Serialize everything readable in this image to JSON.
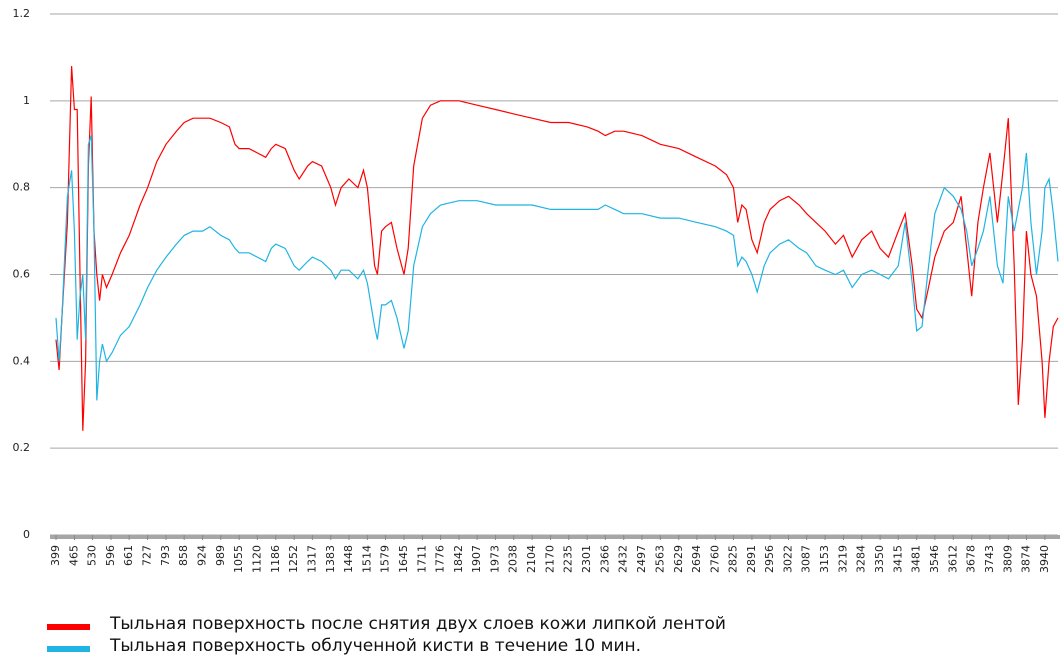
{
  "chart_data": {
    "type": "line",
    "x": [
      399,
      410,
      420,
      440,
      455,
      465,
      475,
      485,
      495,
      505,
      515,
      525,
      535,
      545,
      555,
      565,
      580,
      600,
      630,
      661,
      700,
      727,
      760,
      793,
      830,
      858,
      890,
      924,
      950,
      989,
      1020,
      1040,
      1055,
      1090,
      1120,
      1150,
      1170,
      1186,
      1220,
      1252,
      1270,
      1300,
      1317,
      1350,
      1383,
      1400,
      1420,
      1448,
      1480,
      1500,
      1514,
      1540,
      1550,
      1565,
      1579,
      1600,
      1620,
      1645,
      1660,
      1680,
      1711,
      1740,
      1776,
      1842,
      1907,
      1973,
      2038,
      2104,
      2170,
      2235,
      2301,
      2340,
      2366,
      2400,
      2432,
      2497,
      2563,
      2629,
      2694,
      2760,
      2800,
      2825,
      2840,
      2855,
      2870,
      2891,
      2910,
      2935,
      2956,
      2990,
      3022,
      3060,
      3087,
      3120,
      3153,
      3190,
      3219,
      3250,
      3284,
      3320,
      3350,
      3380,
      3415,
      3440,
      3465,
      3481,
      3500,
      3520,
      3546,
      3580,
      3612,
      3640,
      3660,
      3678,
      3700,
      3720,
      3743,
      3770,
      3790,
      3809,
      3830,
      3845,
      3860,
      3874,
      3890,
      3910,
      3930,
      3940,
      3955,
      3970,
      3987
    ],
    "series": [
      {
        "name": "Тыльная поверхность после снятия двух слоев кожи липкой лентой",
        "color": "#ff0000",
        "values": [
          0.45,
          0.38,
          0.5,
          0.72,
          1.08,
          0.98,
          0.98,
          0.6,
          0.24,
          0.4,
          0.85,
          1.01,
          0.7,
          0.6,
          0.54,
          0.6,
          0.57,
          0.6,
          0.65,
          0.69,
          0.76,
          0.8,
          0.86,
          0.9,
          0.93,
          0.95,
          0.96,
          0.96,
          0.96,
          0.95,
          0.94,
          0.9,
          0.89,
          0.89,
          0.88,
          0.87,
          0.89,
          0.9,
          0.89,
          0.84,
          0.82,
          0.85,
          0.86,
          0.85,
          0.8,
          0.76,
          0.8,
          0.82,
          0.8,
          0.84,
          0.8,
          0.62,
          0.6,
          0.7,
          0.71,
          0.72,
          0.66,
          0.6,
          0.66,
          0.85,
          0.96,
          0.99,
          1.0,
          1.0,
          0.99,
          0.98,
          0.97,
          0.96,
          0.95,
          0.95,
          0.94,
          0.93,
          0.92,
          0.93,
          0.93,
          0.92,
          0.9,
          0.89,
          0.87,
          0.85,
          0.83,
          0.8,
          0.72,
          0.76,
          0.75,
          0.68,
          0.65,
          0.72,
          0.75,
          0.77,
          0.78,
          0.76,
          0.74,
          0.72,
          0.7,
          0.67,
          0.69,
          0.64,
          0.68,
          0.7,
          0.66,
          0.64,
          0.7,
          0.74,
          0.62,
          0.52,
          0.5,
          0.56,
          0.64,
          0.7,
          0.72,
          0.78,
          0.66,
          0.55,
          0.72,
          0.8,
          0.88,
          0.72,
          0.84,
          0.96,
          0.62,
          0.3,
          0.45,
          0.7,
          0.6,
          0.55,
          0.4,
          0.27,
          0.4,
          0.48,
          0.5
        ]
      },
      {
        "name": "Тыльная поверхность облученной кисти в течение 10 мин.",
        "color": "#1fb4e4",
        "values": [
          0.5,
          0.4,
          0.5,
          0.78,
          0.84,
          0.7,
          0.45,
          0.55,
          0.6,
          0.45,
          0.9,
          0.92,
          0.7,
          0.31,
          0.4,
          0.44,
          0.4,
          0.42,
          0.46,
          0.48,
          0.53,
          0.57,
          0.61,
          0.64,
          0.67,
          0.69,
          0.7,
          0.7,
          0.71,
          0.69,
          0.68,
          0.66,
          0.65,
          0.65,
          0.64,
          0.63,
          0.66,
          0.67,
          0.66,
          0.62,
          0.61,
          0.63,
          0.64,
          0.63,
          0.61,
          0.59,
          0.61,
          0.61,
          0.59,
          0.61,
          0.58,
          0.48,
          0.45,
          0.53,
          0.53,
          0.54,
          0.5,
          0.43,
          0.47,
          0.62,
          0.71,
          0.74,
          0.76,
          0.77,
          0.77,
          0.76,
          0.76,
          0.76,
          0.75,
          0.75,
          0.75,
          0.75,
          0.76,
          0.75,
          0.74,
          0.74,
          0.73,
          0.73,
          0.72,
          0.71,
          0.7,
          0.69,
          0.62,
          0.64,
          0.63,
          0.6,
          0.56,
          0.62,
          0.65,
          0.67,
          0.68,
          0.66,
          0.65,
          0.62,
          0.61,
          0.6,
          0.61,
          0.57,
          0.6,
          0.61,
          0.6,
          0.59,
          0.62,
          0.72,
          0.58,
          0.47,
          0.48,
          0.6,
          0.74,
          0.8,
          0.78,
          0.75,
          0.7,
          0.62,
          0.66,
          0.7,
          0.78,
          0.62,
          0.58,
          0.78,
          0.7,
          0.75,
          0.8,
          0.88,
          0.72,
          0.6,
          0.7,
          0.8,
          0.82,
          0.74,
          0.63
        ]
      }
    ],
    "xlim": [
      399,
      3987
    ],
    "xticks": [
      399,
      465,
      530,
      596,
      661,
      727,
      793,
      858,
      924,
      989,
      1055,
      1120,
      1186,
      1252,
      1317,
      1383,
      1448,
      1514,
      1579,
      1645,
      1711,
      1776,
      1842,
      1907,
      1973,
      2038,
      2104,
      2170,
      2235,
      2301,
      2366,
      2432,
      2497,
      2563,
      2629,
      2694,
      2760,
      2825,
      2891,
      2956,
      3022,
      3087,
      3153,
      3219,
      3284,
      3350,
      3415,
      3481,
      3546,
      3612,
      3678,
      3743,
      3809,
      3874,
      3940
    ],
    "ylim": [
      0,
      1.2
    ],
    "yticks": [
      0,
      0.2,
      0.4,
      0.6,
      0.8,
      1,
      1.2
    ],
    "grid": true
  }
}
